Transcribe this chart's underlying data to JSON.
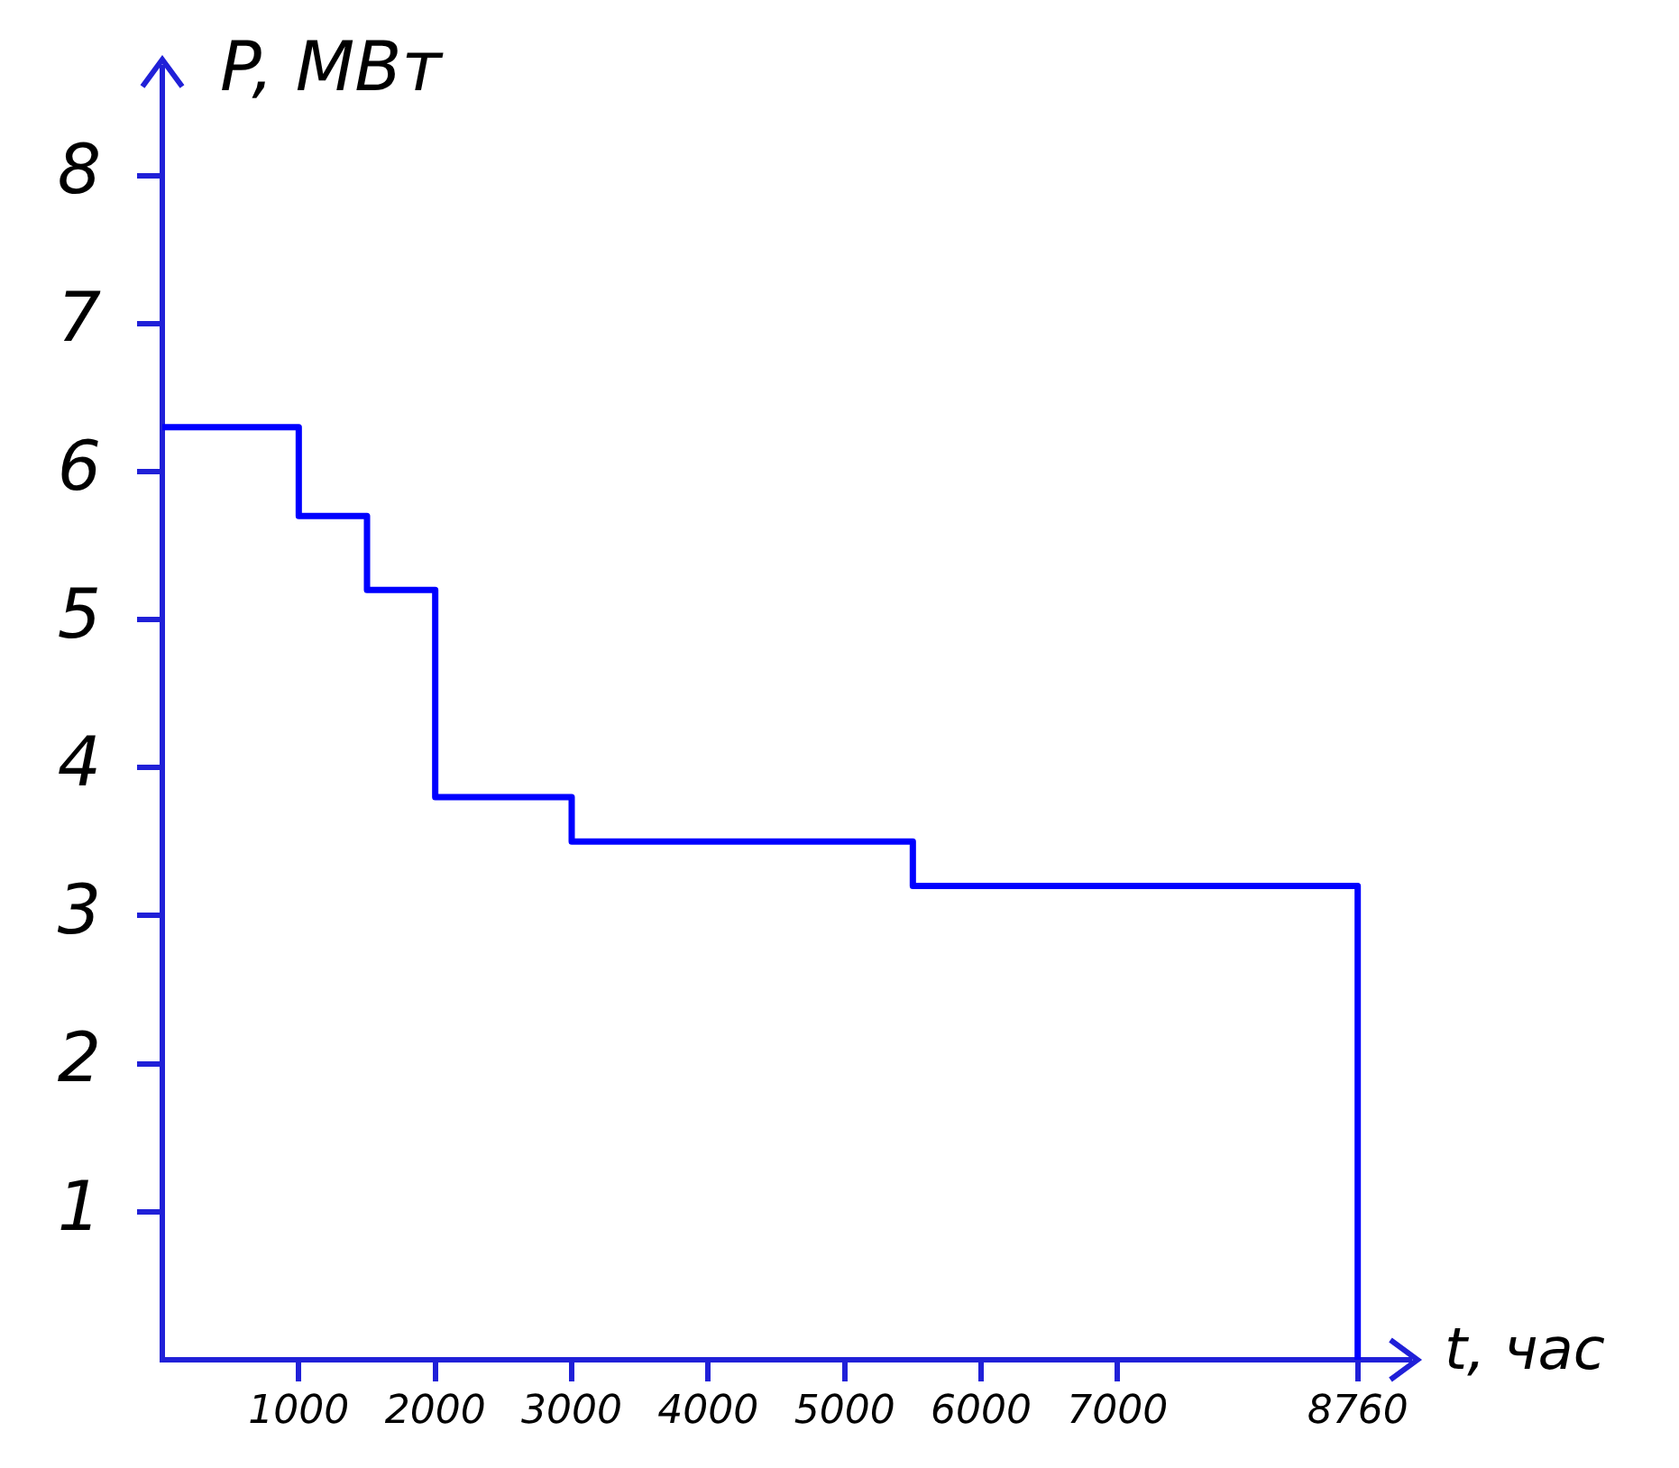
{
  "chart_data": {
    "type": "step",
    "xlabel": "t, час",
    "ylabel": "P, МВт",
    "color": "#0000ff",
    "marker": "none",
    "line_style": "solid",
    "x": [
      0,
      1000,
      1500,
      2000,
      3000,
      5500,
      8760,
      8760
    ],
    "values": [
      6.3,
      5.7,
      5.2,
      3.8,
      3.5,
      3.2,
      3.2,
      0
    ],
    "xlim": [
      0,
      9000
    ],
    "ylim": [
      0,
      8.6
    ],
    "xticks": [
      1000,
      2000,
      3000,
      4000,
      5000,
      6000,
      7000,
      8760
    ],
    "yticks": [
      1,
      2,
      3,
      4,
      5,
      6,
      7,
      8
    ]
  }
}
